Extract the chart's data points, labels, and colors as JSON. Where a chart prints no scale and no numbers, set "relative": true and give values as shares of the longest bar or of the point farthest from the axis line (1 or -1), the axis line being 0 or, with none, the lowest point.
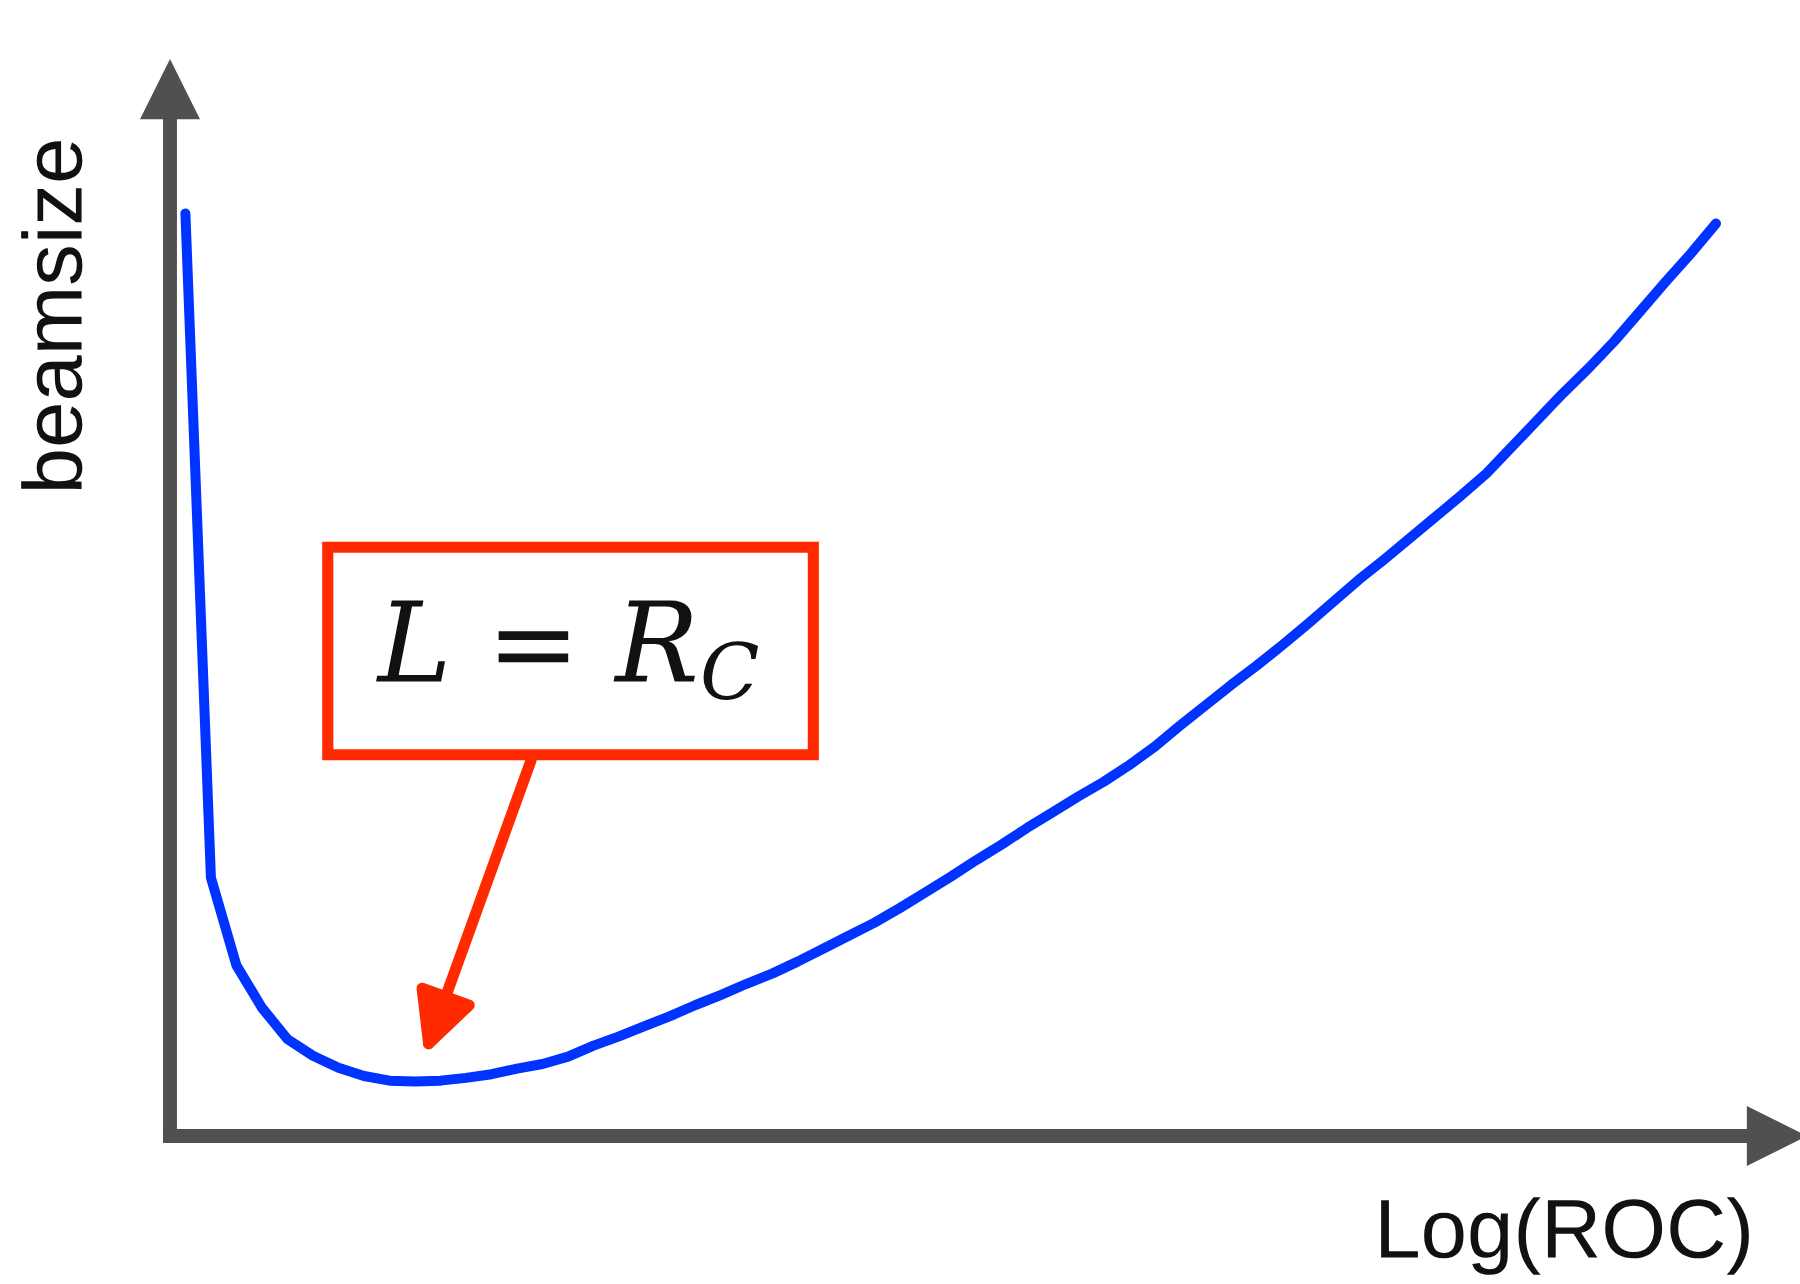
{
  "chart_data": {
    "type": "line",
    "relative": true,
    "xlabel": "Log(ROC)",
    "ylabel": "beamsize",
    "categories": [
      null,
      null,
      null,
      null,
      null,
      null,
      null,
      null,
      null,
      null,
      null,
      null,
      null,
      null,
      null,
      null,
      null,
      null,
      null,
      null,
      null,
      null,
      null,
      null,
      null,
      null,
      null,
      null,
      null,
      null,
      null,
      null,
      null,
      null,
      null,
      null,
      null,
      null,
      null,
      null,
      null,
      null,
      null,
      null,
      null,
      null,
      null,
      null,
      null,
      null,
      null,
      null,
      null,
      null,
      null,
      null,
      null,
      null,
      null,
      null,
      null
    ],
    "series": [
      {
        "color": "#0033ff",
        "values": [
          1,
          0.28,
          0.185,
          0.139,
          0.105,
          0.087,
          0.074,
          0.065,
          0.06,
          0.059,
          0.06,
          0.063,
          0.067,
          0.073,
          0.078,
          0.086,
          0.098,
          0.108,
          0.119,
          0.13,
          0.142,
          0.153,
          0.165,
          0.176,
          0.189,
          0.203,
          0.217,
          0.231,
          0.247,
          0.264,
          0.281,
          0.299,
          0.316,
          0.334,
          0.351,
          0.368,
          0.384,
          0.402,
          0.422,
          0.445,
          0.467,
          0.489,
          0.51,
          0.532,
          0.555,
          0.579,
          0.603,
          0.625,
          0.648,
          0.671,
          0.694,
          0.718,
          0.747,
          0.776,
          0.805,
          0.832,
          0.861,
          0.893,
          0.925,
          0.956,
          0.989
        ]
      }
    ],
    "annotations": [
      "L = R$_{C}$"
    ]
  }
}
